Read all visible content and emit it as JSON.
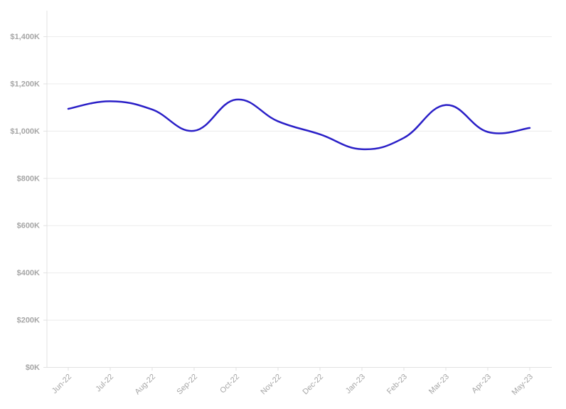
{
  "chart_data": {
    "type": "line",
    "categories": [
      "Jun-22",
      "Jul-22",
      "Aug-22",
      "Sep-22",
      "Oct-22",
      "Nov-22",
      "Dec-22",
      "Jan-23",
      "Feb-23",
      "Mar-23",
      "Apr-23",
      "May-23"
    ],
    "series": [
      {
        "values": [
          1093000,
          1125000,
          1090000,
          1000000,
          1132000,
          1040000,
          985000,
          922000,
          970000,
          1109000,
          995000,
          1012000
        ],
        "color": "#2a1fc7"
      }
    ],
    "yticks": [
      "$0K",
      "$200K",
      "$400K",
      "$600K",
      "$800K",
      "$1,000K",
      "$1,200K",
      "$1,400K"
    ],
    "ylim": [
      0,
      1400000
    ],
    "grid": true,
    "legend": "none"
  }
}
